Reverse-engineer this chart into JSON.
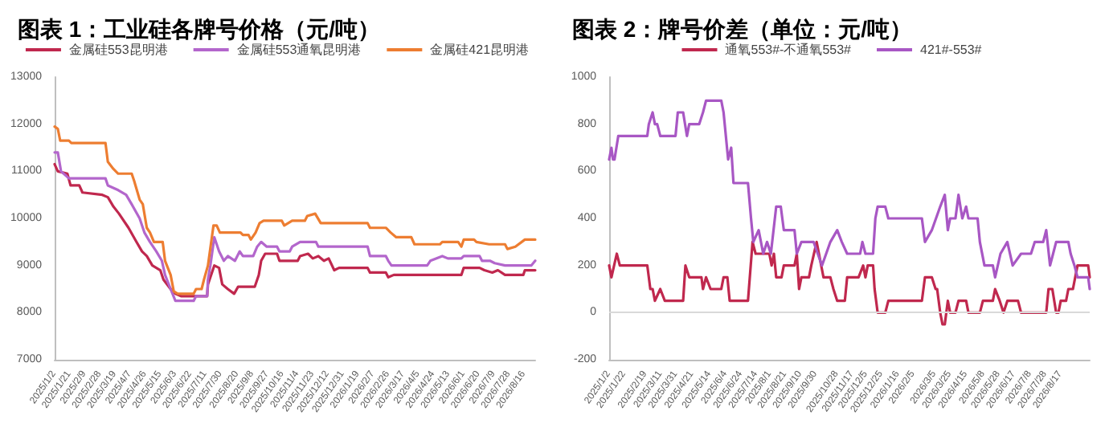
{
  "chart_data": [
    {
      "type": "line",
      "title": "图表 1：工业硅各牌号价格（元/吨）",
      "legend": "top",
      "xlim": [
        "2025-01-02",
        "2026-08-30"
      ],
      "xticks": [
        {
          "value": "2025-01-02",
          "label": "2025/1/2"
        },
        {
          "value": "2025-01-21",
          "label": "2025/1/21"
        },
        {
          "value": "2025-02-09",
          "label": "2025/2/9"
        },
        {
          "value": "2025-02-28",
          "label": "2025/2/28"
        },
        {
          "value": "2025-03-19",
          "label": "2025/3/19"
        },
        {
          "value": "2025-04-07",
          "label": "2025/4/7"
        },
        {
          "value": "2025-04-26",
          "label": "2025/4/26"
        },
        {
          "value": "2025-05-15",
          "label": "2025/5/15"
        },
        {
          "value": "2025-06-03",
          "label": "2025/6/3"
        },
        {
          "value": "2025-06-22",
          "label": "2025/6/22"
        },
        {
          "value": "2025-07-11",
          "label": "2025/7/11"
        },
        {
          "value": "2025-07-30",
          "label": "2025/7/30"
        },
        {
          "value": "2025-08-20",
          "label": "2025/8/20"
        },
        {
          "value": "2025-09-08",
          "label": "2025/9/8"
        },
        {
          "value": "2025-09-27",
          "label": "2025/9/27"
        },
        {
          "value": "2025-10-16",
          "label": "2025/10/16"
        },
        {
          "value": "2025-11-04",
          "label": "2025/11/4"
        },
        {
          "value": "2025-11-23",
          "label": "2025/11/23"
        },
        {
          "value": "2025-12-12",
          "label": "2025/12/12"
        },
        {
          "value": "2025-12-31",
          "label": "2025/12/31"
        },
        {
          "value": "2026-01-19",
          "label": "2026/1/19"
        },
        {
          "value": "2026-02-07",
          "label": "2026/2/7"
        },
        {
          "value": "2026-02-26",
          "label": "2026/2/26"
        },
        {
          "value": "2026-03-17",
          "label": "2026/3/17"
        },
        {
          "value": "2026-04-05",
          "label": "2026/4/5"
        },
        {
          "value": "2026-04-24",
          "label": "2026/4/24"
        },
        {
          "value": "2026-05-13",
          "label": "2026/5/13"
        },
        {
          "value": "2026-06-01",
          "label": "2026/6/1"
        },
        {
          "value": "2026-06-20",
          "label": "2026/6/20"
        },
        {
          "value": "2026-07-09",
          "label": "2026/7/9"
        },
        {
          "value": "2026-07-28",
          "label": "2026/7/28"
        },
        {
          "value": "2026-08-16",
          "label": "2026/8/16"
        }
      ],
      "ylim": [
        7000,
        13000
      ],
      "yticks": [
        7000,
        8000,
        9000,
        10000,
        11000,
        12000,
        13000
      ],
      "series": [
        {
          "name": "金属硅553昆明港",
          "color": "#c0284e",
          "x": [
            "2025-01-02",
            "2025-01-06",
            "2025-01-18",
            "2025-01-22",
            "2025-02-02",
            "2025-02-06",
            "2025-03-03",
            "2025-03-10",
            "2025-03-17",
            "2025-03-24",
            "2025-04-05",
            "2025-04-15",
            "2025-04-22",
            "2025-04-28",
            "2025-05-05",
            "2025-05-15",
            "2025-05-19",
            "2025-05-28",
            "2025-06-03",
            "2025-06-10",
            "2025-07-13",
            "2025-07-14",
            "2025-07-22",
            "2025-07-28",
            "2025-08-01",
            "2025-08-08",
            "2025-08-16",
            "2025-08-21",
            "2025-09-11",
            "2025-09-16",
            "2025-09-19",
            "2025-09-24",
            "2025-10-09",
            "2025-10-12",
            "2025-11-04",
            "2025-11-07",
            "2025-11-17",
            "2025-11-23",
            "2025-11-30",
            "2025-12-07",
            "2025-12-13",
            "2025-12-20",
            "2025-12-26",
            "2026-01-31",
            "2026-02-03",
            "2026-02-23",
            "2026-02-26",
            "2026-03-05",
            "2026-05-29",
            "2026-06-01",
            "2026-06-21",
            "2026-06-27",
            "2026-07-07",
            "2026-07-14",
            "2026-07-23",
            "2026-08-15",
            "2026-08-17",
            "2026-08-30"
          ],
          "values": [
            11150,
            11000,
            10950,
            10700,
            10700,
            10550,
            10500,
            10450,
            10250,
            10100,
            9800,
            9500,
            9300,
            9200,
            9000,
            8900,
            8700,
            8500,
            8400,
            8350,
            8350,
            8600,
            9000,
            8950,
            8600,
            8500,
            8400,
            8550,
            8550,
            8800,
            9100,
            9250,
            9250,
            9100,
            9100,
            9200,
            9250,
            9150,
            9200,
            9100,
            9150,
            8900,
            8950,
            8950,
            8850,
            8850,
            8750,
            8800,
            8800,
            8950,
            8950,
            8900,
            8850,
            8900,
            8800,
            8800,
            8900,
            8900
          ]
        },
        {
          "name": "金属硅553通氧昆明港",
          "color": "#b366cc",
          "x": [
            "2025-01-02",
            "2025-01-06",
            "2025-01-10",
            "2025-01-20",
            "2025-03-07",
            "2025-03-10",
            "2025-03-23",
            "2025-04-02",
            "2025-04-09",
            "2025-04-19",
            "2025-04-25",
            "2025-05-02",
            "2025-05-10",
            "2025-05-17",
            "2025-05-21",
            "2025-05-28",
            "2025-06-03",
            "2025-06-26",
            "2025-06-29",
            "2025-07-13",
            "2025-07-14",
            "2025-07-17",
            "2025-07-22",
            "2025-07-28",
            "2025-08-03",
            "2025-08-08",
            "2025-08-17",
            "2025-08-23",
            "2025-08-27",
            "2025-09-09",
            "2025-09-14",
            "2025-09-19",
            "2025-09-26",
            "2025-10-09",
            "2025-10-12",
            "2025-10-25",
            "2025-10-28",
            "2025-11-07",
            "2025-11-27",
            "2025-11-30",
            "2026-01-31",
            "2026-02-03",
            "2026-02-23",
            "2026-02-26",
            "2026-03-02",
            "2026-04-16",
            "2026-04-20",
            "2026-05-05",
            "2026-05-12",
            "2026-05-29",
            "2026-06-01",
            "2026-06-21",
            "2026-06-24",
            "2026-07-04",
            "2026-07-10",
            "2026-07-23",
            "2026-08-25",
            "2026-08-30"
          ],
          "values": [
            11400,
            11400,
            11000,
            10850,
            10850,
            10700,
            10600,
            10500,
            10300,
            10000,
            9700,
            9500,
            9300,
            9100,
            8800,
            8500,
            8250,
            8250,
            8350,
            8350,
            8700,
            9000,
            9600,
            9300,
            9100,
            9200,
            9100,
            9300,
            9200,
            9200,
            9400,
            9500,
            9400,
            9400,
            9300,
            9300,
            9400,
            9500,
            9500,
            9400,
            9400,
            9200,
            9200,
            9100,
            9000,
            9000,
            9100,
            9200,
            9150,
            9150,
            9200,
            9200,
            9100,
            9100,
            9050,
            9000,
            9000,
            9100
          ]
        },
        {
          "name": "金属硅421昆明港",
          "color": "#ed7d31",
          "x": [
            "2025-01-02",
            "2025-01-06",
            "2025-01-09",
            "2025-01-20",
            "2025-01-23",
            "2025-03-07",
            "2025-03-10",
            "2025-03-17",
            "2025-03-23",
            "2025-04-09",
            "2025-04-12",
            "2025-04-19",
            "2025-04-23",
            "2025-04-28",
            "2025-05-02",
            "2025-05-07",
            "2025-05-18",
            "2025-05-21",
            "2025-05-28",
            "2025-06-01",
            "2025-06-06",
            "2025-06-26",
            "2025-06-29",
            "2025-07-06",
            "2025-07-09",
            "2025-07-14",
            "2025-07-21",
            "2025-07-25",
            "2025-07-29",
            "2025-08-24",
            "2025-08-27",
            "2025-09-03",
            "2025-09-06",
            "2025-09-12",
            "2025-09-17",
            "2025-09-22",
            "2025-10-15",
            "2025-10-18",
            "2025-10-28",
            "2025-11-13",
            "2025-11-16",
            "2025-11-26",
            "2025-12-03",
            "2026-01-31",
            "2026-02-03",
            "2026-02-23",
            "2026-03-01",
            "2026-03-08",
            "2026-03-27",
            "2026-03-31",
            "2026-05-02",
            "2026-05-05",
            "2026-05-25",
            "2026-05-29",
            "2026-06-01",
            "2026-06-14",
            "2026-06-17",
            "2026-07-03",
            "2026-07-23",
            "2026-07-26",
            "2026-08-05",
            "2026-08-17",
            "2026-08-30"
          ],
          "values": [
            11950,
            11900,
            11650,
            11650,
            11600,
            11600,
            11200,
            11050,
            10950,
            10950,
            10800,
            10400,
            10300,
            9800,
            9700,
            9500,
            9500,
            9100,
            8800,
            8450,
            8400,
            8400,
            8500,
            8500,
            8700,
            9000,
            9850,
            9850,
            9700,
            9700,
            9650,
            9650,
            9550,
            9700,
            9900,
            9950,
            9950,
            9850,
            9950,
            9950,
            10050,
            10100,
            9900,
            9900,
            9800,
            9800,
            9700,
            9600,
            9600,
            9450,
            9450,
            9500,
            9500,
            9400,
            9550,
            9550,
            9500,
            9450,
            9450,
            9350,
            9400,
            9550,
            9550
          ]
        }
      ]
    },
    {
      "type": "line",
      "title": "图表 2：牌号价差（单位：元/吨）",
      "legend": "top",
      "xlim": [
        "2025-01-02",
        "2026-09-24"
      ],
      "xticks": [
        {
          "value": "2025-01-02",
          "label": "2025/1/2"
        },
        {
          "value": "2025-01-22",
          "label": "2025/1/22"
        },
        {
          "value": "2025-02-19",
          "label": "2025/2/19"
        },
        {
          "value": "2025-03-11",
          "label": "2025/3/11"
        },
        {
          "value": "2025-03-31",
          "label": "2025/3/31"
        },
        {
          "value": "2025-04-21",
          "label": "2025/4/21"
        },
        {
          "value": "2025-05-14",
          "label": "2025/5/14"
        },
        {
          "value": "2025-06-04",
          "label": "2025/6/4"
        },
        {
          "value": "2025-06-24",
          "label": "2025/6/24"
        },
        {
          "value": "2025-07-14",
          "label": "2025/7/14"
        },
        {
          "value": "2025-08-01",
          "label": "2025/8/1"
        },
        {
          "value": "2025-08-21",
          "label": "2025/8/21"
        },
        {
          "value": "2025-09-10",
          "label": "2025/9/10"
        },
        {
          "value": "2025-09-30",
          "label": "2025/9/30"
        },
        {
          "value": "2025-10-28",
          "label": "2025/10/28"
        },
        {
          "value": "2025-11-17",
          "label": "2025/11/17"
        },
        {
          "value": "2025-12-05",
          "label": "2025/12/5"
        },
        {
          "value": "2025-12-25",
          "label": "2025/12/25"
        },
        {
          "value": "2026-01-16",
          "label": "2026/1/16"
        },
        {
          "value": "2026-02-05",
          "label": "2026/2/5"
        },
        {
          "value": "2026-03-05",
          "label": "2026/3/5"
        },
        {
          "value": "2026-03-25",
          "label": "2026/3/25"
        },
        {
          "value": "2026-04-15",
          "label": "2026/4/15"
        },
        {
          "value": "2026-05-08",
          "label": "2026/5/8"
        },
        {
          "value": "2026-05-28",
          "label": "2026/5/28"
        },
        {
          "value": "2026-06-17",
          "label": "2026/6/17"
        },
        {
          "value": "2026-07-08",
          "label": "2026/7/8"
        },
        {
          "value": "2026-07-28",
          "label": "2026/7/28"
        },
        {
          "value": "2026-08-17",
          "label": "2026/8/17"
        }
      ],
      "ylim": [
        -200,
        1000
      ],
      "yticks": [
        -200,
        0,
        200,
        400,
        600,
        800,
        1000
      ],
      "ref_lines": [
        {
          "axis": "y",
          "value": 0,
          "color": "#d9d9d9"
        }
      ],
      "series": [
        {
          "name": "通氧553#-不通氧553#",
          "color": "#c0284e",
          "x": [
            "2025-01-02",
            "2025-01-05",
            "2025-01-12",
            "2025-01-16",
            "2025-02-21",
            "2025-02-25",
            "2025-02-28",
            "2025-03-03",
            "2025-03-10",
            "2025-03-16",
            "2025-04-09",
            "2025-04-12",
            "2025-04-17",
            "2025-05-03",
            "2025-05-05",
            "2025-05-09",
            "2025-05-15",
            "2025-05-29",
            "2025-06-01",
            "2025-06-06",
            "2025-06-09",
            "2025-07-03",
            "2025-07-09",
            "2025-07-13",
            "2025-07-31",
            "2025-08-03",
            "2025-08-06",
            "2025-08-09",
            "2025-08-16",
            "2025-08-19",
            "2025-09-02",
            "2025-09-05",
            "2025-09-08",
            "2025-09-11",
            "2025-09-21",
            "2025-09-24",
            "2025-10-01",
            "2025-10-10",
            "2025-10-19",
            "2025-10-23",
            "2025-10-28",
            "2025-11-07",
            "2025-11-10",
            "2025-11-25",
            "2025-12-01",
            "2025-12-04",
            "2025-12-07",
            "2025-12-14",
            "2025-12-16",
            "2025-12-20",
            "2025-12-30",
            "2026-01-03",
            "2026-02-16",
            "2026-02-20",
            "2026-03-01",
            "2026-03-06",
            "2026-03-08",
            "2026-03-12",
            "2026-03-15",
            "2026-03-18",
            "2026-03-22",
            "2026-03-25",
            "2026-04-01",
            "2026-04-05",
            "2026-04-15",
            "2026-04-18",
            "2026-05-03",
            "2026-05-07",
            "2026-05-20",
            "2026-05-23",
            "2026-05-29",
            "2026-06-03",
            "2026-06-08",
            "2026-06-22",
            "2026-06-26",
            "2026-07-29",
            "2026-08-01",
            "2026-08-06",
            "2026-08-11",
            "2026-08-14",
            "2026-08-17",
            "2026-08-24",
            "2026-08-27",
            "2026-09-02",
            "2026-09-08",
            "2026-09-22",
            "2026-09-24"
          ],
          "values": [
            200,
            150,
            250,
            200,
            200,
            100,
            100,
            50,
            100,
            50,
            50,
            200,
            150,
            150,
            100,
            150,
            100,
            100,
            150,
            150,
            50,
            50,
            300,
            250,
            250,
            200,
            250,
            150,
            150,
            200,
            200,
            250,
            100,
            150,
            150,
            200,
            300,
            150,
            150,
            100,
            50,
            50,
            150,
            150,
            200,
            150,
            200,
            200,
            100,
            0,
            0,
            50,
            50,
            150,
            150,
            100,
            100,
            0,
            -50,
            -50,
            50,
            0,
            0,
            50,
            50,
            0,
            0,
            50,
            50,
            100,
            50,
            0,
            50,
            50,
            0,
            0,
            100,
            100,
            0,
            0,
            50,
            50,
            100,
            100,
            200,
            200,
            150
          ]
        },
        {
          "name": "421#-553#",
          "color": "#a857c4",
          "x": [
            "2025-01-02",
            "2025-01-05",
            "2025-01-07",
            "2025-01-09",
            "2025-01-14",
            "2025-02-21",
            "2025-02-23",
            "2025-02-28",
            "2025-03-03",
            "2025-03-06",
            "2025-03-10",
            "2025-03-30",
            "2025-04-02",
            "2025-04-09",
            "2025-04-14",
            "2025-04-17",
            "2025-04-30",
            "2025-05-05",
            "2025-05-09",
            "2025-05-29",
            "2025-06-01",
            "2025-06-07",
            "2025-06-11",
            "2025-06-14",
            "2025-07-03",
            "2025-07-07",
            "2025-07-10",
            "2025-07-17",
            "2025-07-23",
            "2025-07-28",
            "2025-08-02",
            "2025-08-09",
            "2025-08-15",
            "2025-08-19",
            "2025-09-02",
            "2025-09-05",
            "2025-09-11",
            "2025-09-27",
            "2025-10-08",
            "2025-10-19",
            "2025-10-28",
            "2025-11-03",
            "2025-11-10",
            "2025-11-27",
            "2025-11-30",
            "2025-12-04",
            "2025-12-14",
            "2025-12-17",
            "2025-12-20",
            "2025-12-30",
            "2026-01-03",
            "2026-02-16",
            "2026-02-20",
            "2026-03-01",
            "2026-03-12",
            "2026-03-18",
            "2026-03-22",
            "2026-03-25",
            "2026-04-01",
            "2026-04-05",
            "2026-04-10",
            "2026-04-15",
            "2026-04-18",
            "2026-04-30",
            "2026-05-03",
            "2026-05-09",
            "2026-05-20",
            "2026-05-23",
            "2026-05-30",
            "2026-06-08",
            "2026-06-15",
            "2026-06-26",
            "2026-07-09",
            "2026-07-14",
            "2026-07-25",
            "2026-07-29",
            "2026-08-03",
            "2026-08-07",
            "2026-08-11",
            "2026-08-27",
            "2026-08-30",
            "2026-09-04",
            "2026-09-08",
            "2026-09-22",
            "2026-09-24"
          ],
          "values": [
            650,
            700,
            650,
            650,
            750,
            750,
            800,
            850,
            800,
            800,
            750,
            750,
            850,
            850,
            750,
            800,
            800,
            850,
            900,
            900,
            850,
            650,
            700,
            550,
            550,
            400,
            300,
            350,
            250,
            300,
            250,
            450,
            450,
            350,
            350,
            250,
            300,
            300,
            200,
            300,
            350,
            300,
            250,
            250,
            300,
            250,
            250,
            400,
            450,
            450,
            400,
            400,
            300,
            350,
            450,
            500,
            350,
            400,
            400,
            500,
            400,
            450,
            400,
            400,
            300,
            200,
            200,
            150,
            250,
            300,
            200,
            250,
            250,
            300,
            300,
            350,
            200,
            250,
            300,
            300,
            250,
            200,
            150,
            150,
            100
          ]
        }
      ]
    }
  ]
}
